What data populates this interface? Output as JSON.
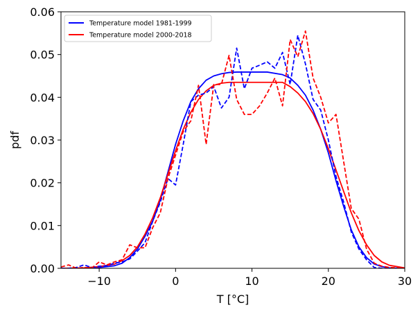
{
  "chart_data": {
    "type": "line",
    "xlabel": "T [°C]",
    "ylabel": "pdf",
    "xlim": [
      -15,
      30
    ],
    "ylim": [
      0,
      0.06
    ],
    "xticks": [
      -10,
      0,
      10,
      20,
      30
    ],
    "xtick_labels": [
      "−10",
      "0",
      "10",
      "20",
      "30"
    ],
    "yticks": [
      0,
      0.01,
      0.02,
      0.03,
      0.04,
      0.05,
      0.06
    ],
    "ytick_labels": [
      "0.00",
      "0.01",
      "0.02",
      "0.03",
      "0.04",
      "0.05",
      "0.06"
    ],
    "grid": false,
    "legend_position": "top-left",
    "legend": [
      {
        "label": "Temperature model 1981-1999",
        "color": "#0000ff"
      },
      {
        "label": "Temperature model 2000-2018",
        "color": "#ff0000"
      }
    ],
    "series": [
      {
        "name": "Temperature model 1981-1999",
        "color": "#0000ff",
        "style": "solid",
        "x": [
          -15,
          -12,
          -10,
          -8,
          -7,
          -6,
          -5,
          -4,
          -3,
          -2,
          -1,
          0,
          1,
          2,
          3,
          4,
          5,
          6,
          7,
          8,
          10,
          12,
          14,
          15,
          16,
          17,
          18,
          19,
          20,
          21,
          22,
          23,
          24,
          25,
          26,
          27,
          28,
          30
        ],
        "y": [
          0.0,
          0.0,
          0.0002,
          0.0006,
          0.0012,
          0.0025,
          0.0045,
          0.0075,
          0.011,
          0.016,
          0.0225,
          0.029,
          0.0345,
          0.039,
          0.042,
          0.044,
          0.045,
          0.0455,
          0.0458,
          0.0459,
          0.0459,
          0.0459,
          0.0453,
          0.0445,
          0.0428,
          0.0405,
          0.037,
          0.0325,
          0.027,
          0.0205,
          0.0145,
          0.009,
          0.005,
          0.0025,
          0.001,
          0.0004,
          0.0001,
          0.0
        ]
      },
      {
        "name": "Temperature model 2000-2018",
        "color": "#ff0000",
        "style": "solid",
        "x": [
          -15,
          -12,
          -10,
          -8,
          -7,
          -6,
          -5,
          -4,
          -3,
          -2,
          -1,
          0,
          1,
          2,
          3,
          4,
          5,
          6,
          7,
          8,
          10,
          12,
          14,
          15,
          16,
          17,
          18,
          19,
          20,
          21,
          22,
          23,
          24,
          25,
          26,
          27,
          28,
          30
        ],
        "y": [
          0.0,
          0.0001,
          0.0004,
          0.001,
          0.0018,
          0.003,
          0.005,
          0.008,
          0.0118,
          0.0165,
          0.022,
          0.0275,
          0.0325,
          0.0365,
          0.0395,
          0.0415,
          0.0428,
          0.0433,
          0.0435,
          0.0435,
          0.0435,
          0.0435,
          0.0435,
          0.0425,
          0.041,
          0.039,
          0.0362,
          0.0325,
          0.028,
          0.023,
          0.018,
          0.013,
          0.0088,
          0.0055,
          0.003,
          0.0015,
          0.0007,
          0.0001
        ]
      },
      {
        "name": "",
        "color": "#0000ff",
        "style": "dashed",
        "x": [
          -15,
          -14,
          -13,
          -12,
          -11,
          -10,
          -9,
          -8,
          -7,
          -6,
          -5,
          -4,
          -3,
          -2,
          -1,
          0,
          1,
          2,
          3,
          4,
          5,
          6,
          7,
          8,
          9,
          10,
          11,
          12,
          13,
          14,
          15,
          16,
          17,
          18,
          19,
          20,
          21,
          22,
          23,
          24,
          25,
          26,
          27,
          28,
          30
        ],
        "y": [
          0.0,
          0.0,
          0.0002,
          0.0008,
          0.0002,
          0.0005,
          0.0006,
          0.0012,
          0.0015,
          0.0022,
          0.004,
          0.006,
          0.011,
          0.0155,
          0.021,
          0.0195,
          0.029,
          0.039,
          0.0405,
          0.041,
          0.0425,
          0.0375,
          0.04,
          0.0515,
          0.042,
          0.0468,
          0.0475,
          0.0483,
          0.0468,
          0.0505,
          0.043,
          0.0545,
          0.0478,
          0.0395,
          0.037,
          0.03,
          0.0215,
          0.0155,
          0.0085,
          0.0045,
          0.002,
          0.0002,
          0.0,
          0.0,
          0.0
        ]
      },
      {
        "name": "",
        "color": "#ff0000",
        "style": "dashed",
        "x": [
          -15,
          -14,
          -13,
          -12,
          -11,
          -10,
          -9,
          -8,
          -7,
          -6,
          -5,
          -4,
          -3,
          -2,
          -1,
          0,
          1,
          2,
          3,
          4,
          5,
          6,
          7,
          8,
          9,
          10,
          11,
          12,
          13,
          14,
          15,
          16,
          17,
          18,
          19,
          20,
          21,
          22,
          23,
          24,
          25,
          26,
          27,
          28,
          30
        ],
        "y": [
          0.0003,
          0.0008,
          0.0,
          0.0002,
          0.0,
          0.0015,
          0.0008,
          0.0015,
          0.002,
          0.0055,
          0.0048,
          0.0048,
          0.0095,
          0.013,
          0.021,
          0.0265,
          0.032,
          0.0345,
          0.0428,
          0.029,
          0.043,
          0.043,
          0.0498,
          0.0395,
          0.036,
          0.036,
          0.038,
          0.041,
          0.0445,
          0.038,
          0.0535,
          0.0495,
          0.0555,
          0.0445,
          0.04,
          0.034,
          0.036,
          0.025,
          0.014,
          0.0115,
          0.0045,
          0.0012,
          0.0005,
          0.0002,
          0.0
        ]
      }
    ]
  }
}
